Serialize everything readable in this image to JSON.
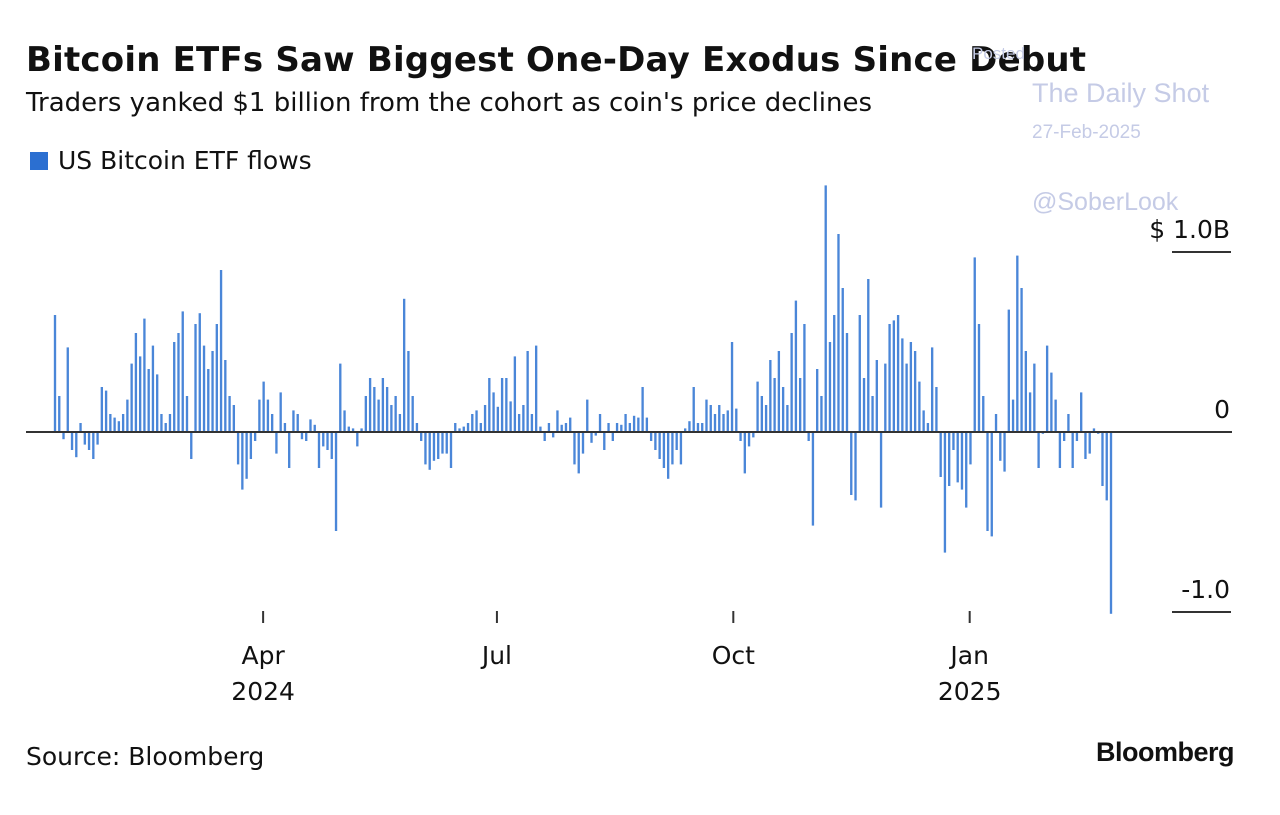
{
  "header": {
    "title": "Bitcoin ETFs Saw Biggest One-Day Exodus Since Debut",
    "subtitle": "Traders yanked $1 billion from the cohort as coin's price declines"
  },
  "watermark": {
    "posted": "Posted",
    "publication": "The Daily Shot",
    "date": "27-Feb-2025",
    "handle": "@SoberLook"
  },
  "footer": {
    "source": "Source: Bloomberg",
    "brand": "Bloomberg"
  },
  "chart_data": {
    "type": "bar",
    "title": "Bitcoin ETFs Saw Biggest One-Day Exodus Since Debut",
    "subtitle": "Traders yanked $1 billion from the cohort as coin's price declines",
    "units": "USD billions",
    "legend": {
      "position": "top-left",
      "entries": [
        "US Bitcoin ETF flows"
      ]
    },
    "series": [
      {
        "name": "US Bitcoin ETF flows",
        "color": "#4a86d8",
        "x_start": "2024-01-11",
        "x_end": "2025-02-25",
        "values": [
          0.65,
          0.2,
          -0.04,
          0.47,
          -0.1,
          -0.14,
          0.05,
          -0.07,
          -0.1,
          -0.15,
          -0.07,
          0.25,
          0.23,
          0.1,
          0.08,
          0.06,
          0.1,
          0.18,
          0.38,
          0.55,
          0.42,
          0.63,
          0.35,
          0.48,
          0.32,
          0.1,
          0.05,
          0.1,
          0.5,
          0.55,
          0.67,
          0.2,
          -0.15,
          0.6,
          0.66,
          0.48,
          0.35,
          0.45,
          0.6,
          0.9,
          0.4,
          0.2,
          0.15,
          -0.18,
          -0.32,
          -0.26,
          -0.15,
          -0.05,
          0.18,
          0.28,
          0.18,
          0.1,
          -0.12,
          0.22,
          0.05,
          -0.2,
          0.12,
          0.1,
          -0.04,
          -0.05,
          0.07,
          0.04,
          -0.2,
          -0.08,
          -0.1,
          -0.15,
          -0.55,
          0.38,
          0.12,
          0.03,
          0.02,
          -0.08,
          0.02,
          0.2,
          0.3,
          0.25,
          0.18,
          0.3,
          0.25,
          0.15,
          0.2,
          0.1,
          0.74,
          0.45,
          0.2,
          0.05,
          -0.05,
          -0.18,
          -0.21,
          -0.16,
          -0.15,
          -0.12,
          -0.12,
          -0.2,
          0.05,
          0.02,
          0.03,
          0.05,
          0.1,
          0.12,
          0.05,
          0.15,
          0.3,
          0.22,
          0.14,
          0.3,
          0.3,
          0.17,
          0.42,
          0.1,
          0.15,
          0.45,
          0.1,
          0.48,
          0.03,
          -0.05,
          0.05,
          -0.03,
          0.12,
          0.04,
          0.05,
          0.08,
          -0.18,
          -0.23,
          -0.12,
          0.18,
          -0.06,
          -0.02,
          0.1,
          -0.1,
          0.05,
          -0.05,
          0.05,
          0.04,
          0.1,
          0.05,
          0.09,
          0.08,
          0.25,
          0.08,
          -0.05,
          -0.1,
          -0.15,
          -0.2,
          -0.26,
          -0.18,
          -0.1,
          -0.18,
          0.02,
          0.06,
          0.25,
          0.05,
          0.05,
          0.18,
          0.15,
          0.1,
          0.15,
          0.1,
          0.12,
          0.5,
          0.13,
          -0.05,
          -0.23,
          -0.08,
          -0.03,
          0.28,
          0.2,
          0.15,
          0.4,
          0.3,
          0.45,
          0.25,
          0.15,
          0.55,
          0.73,
          0.3,
          0.6,
          -0.05,
          -0.52,
          0.35,
          0.2,
          1.37,
          0.5,
          0.65,
          1.1,
          0.8,
          0.55,
          -0.35,
          -0.38,
          0.65,
          0.3,
          0.85,
          0.2,
          0.4,
          -0.42,
          0.38,
          0.6,
          0.62,
          0.65,
          0.52,
          0.38,
          0.5,
          0.45,
          0.28,
          0.12,
          0.05,
          0.47,
          0.25,
          -0.25,
          -0.67,
          -0.3,
          -0.1,
          -0.28,
          -0.32,
          -0.42,
          -0.18,
          0.97,
          0.6,
          0.2,
          -0.55,
          -0.58,
          0.1,
          -0.16,
          -0.22,
          0.68,
          0.18,
          0.98,
          0.8,
          0.45,
          0.22,
          0.38,
          -0.2,
          -0.01,
          0.48,
          0.33,
          0.18,
          -0.2,
          -0.05,
          0.1,
          -0.2,
          -0.05,
          0.22,
          -0.15,
          -0.12,
          0.02,
          -0.01,
          -0.3,
          -0.38,
          -1.01
        ]
      }
    ],
    "y_axis": {
      "range": [
        -1.2,
        1.35
      ],
      "ticks": [
        {
          "value": 1.0,
          "label": "$ 1.0B"
        },
        {
          "value": 0,
          "label": "0"
        },
        {
          "value": -1.0,
          "label": "-1.0"
        }
      ],
      "position": "right",
      "grid": false
    },
    "x_axis": {
      "ticks": [
        {
          "date": "2024-04-01",
          "label": "Apr",
          "year": "2024"
        },
        {
          "date": "2024-07-01",
          "label": "Jul",
          "year": ""
        },
        {
          "date": "2024-10-01",
          "label": "Oct",
          "year": ""
        },
        {
          "date": "2025-01-01",
          "label": "Jan",
          "year": "2025"
        }
      ]
    }
  }
}
